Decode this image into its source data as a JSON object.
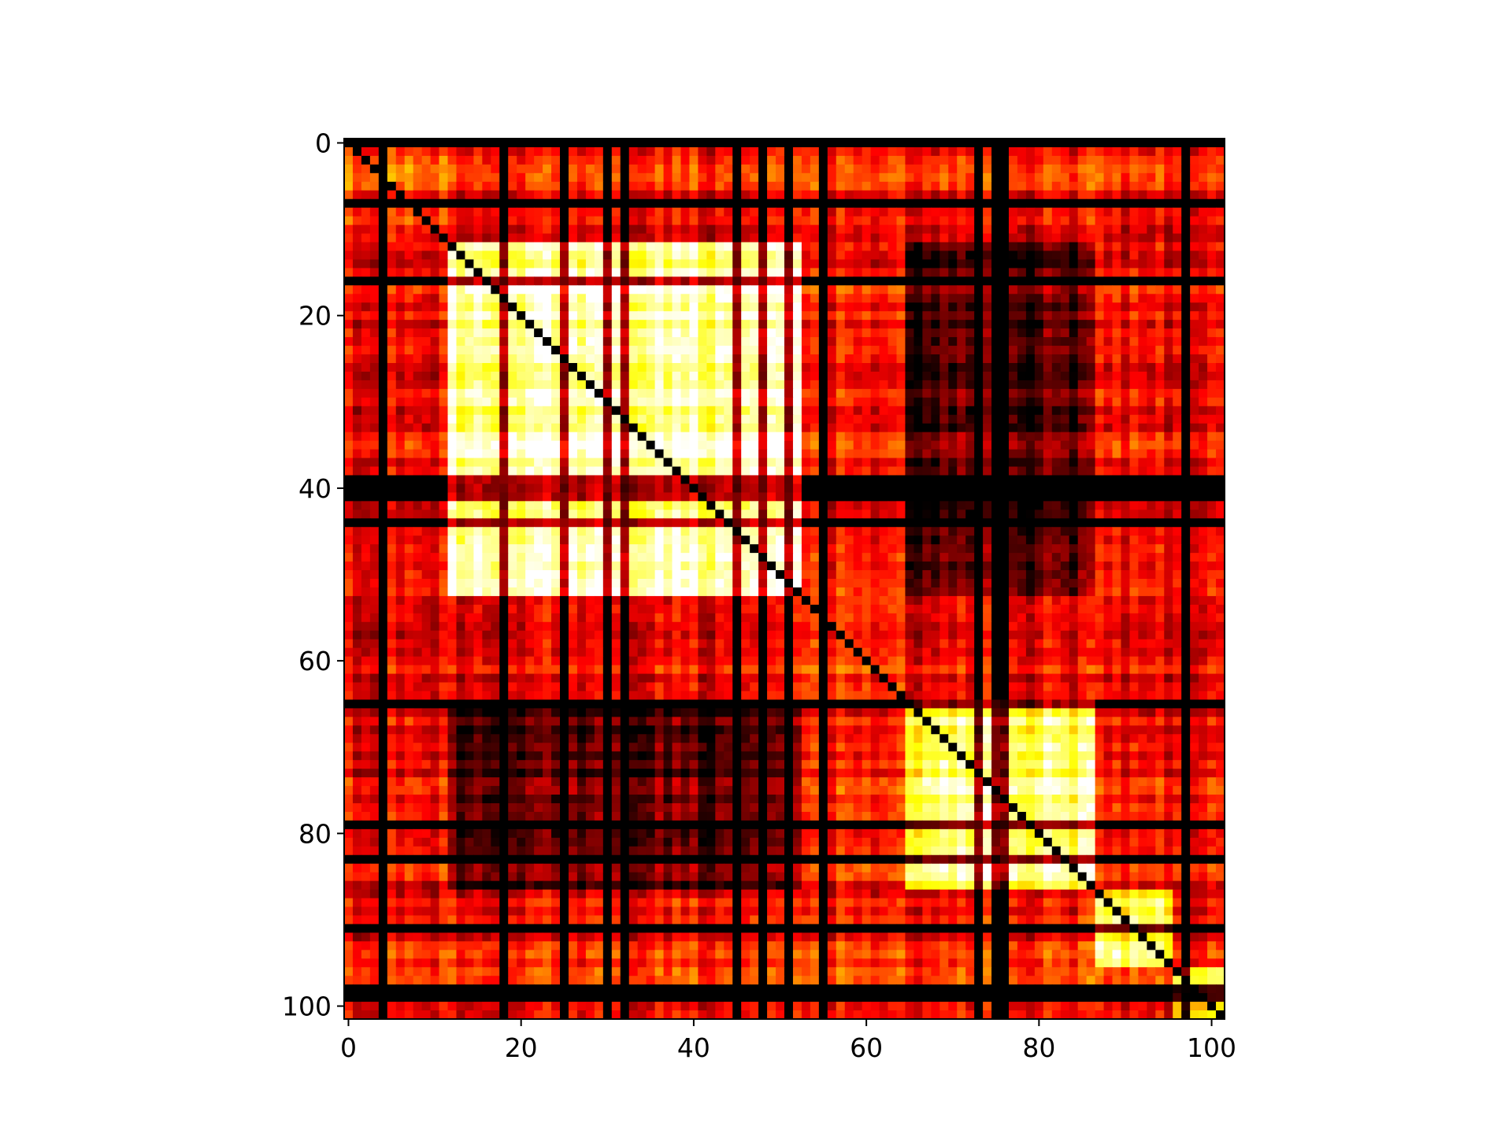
{
  "chart_data": {
    "type": "heatmap",
    "title": "",
    "xlabel": "",
    "ylabel": "",
    "colormap": "hot",
    "matrix_size": [
      102,
      102
    ],
    "xlim": [
      -0.5,
      101.5
    ],
    "ylim": [
      101.5,
      -0.5
    ],
    "xticks": [
      0,
      20,
      40,
      60,
      80,
      100
    ],
    "yticks": [
      0,
      20,
      40,
      60,
      80,
      100
    ],
    "xtick_labels": [
      "0",
      "20",
      "40",
      "60",
      "80",
      "100"
    ],
    "ytick_labels": [
      "0",
      "20",
      "40",
      "60",
      "80",
      "100"
    ],
    "diagonal_value": 0.0,
    "blocks": [
      {
        "rows": [
          0,
          11
        ],
        "cols": [
          0,
          11
        ],
        "level": 0.45
      },
      {
        "rows": [
          12,
          52
        ],
        "cols": [
          12,
          52
        ],
        "level": 0.9
      },
      {
        "rows": [
          53,
          64
        ],
        "cols": [
          53,
          64
        ],
        "level": 0.42
      },
      {
        "rows": [
          65,
          86
        ],
        "cols": [
          65,
          86
        ],
        "level": 0.82
      },
      {
        "rows": [
          87,
          95
        ],
        "cols": [
          87,
          95
        ],
        "level": 0.78
      },
      {
        "rows": [
          96,
          101
        ],
        "cols": [
          96,
          101
        ],
        "level": 0.7
      },
      {
        "rows": [
          12,
          52
        ],
        "cols": [
          65,
          86
        ],
        "level": 0.1
      },
      {
        "rows": [
          65,
          86
        ],
        "cols": [
          12,
          52
        ],
        "level": 0.1
      }
    ],
    "background_level": 0.35,
    "colors": {
      "low": "#000000",
      "mid_low": "#8b0000",
      "mid": "#ff2000",
      "mid_high": "#ffa000",
      "high": "#ffff40",
      "max": "#ffffff"
    }
  }
}
